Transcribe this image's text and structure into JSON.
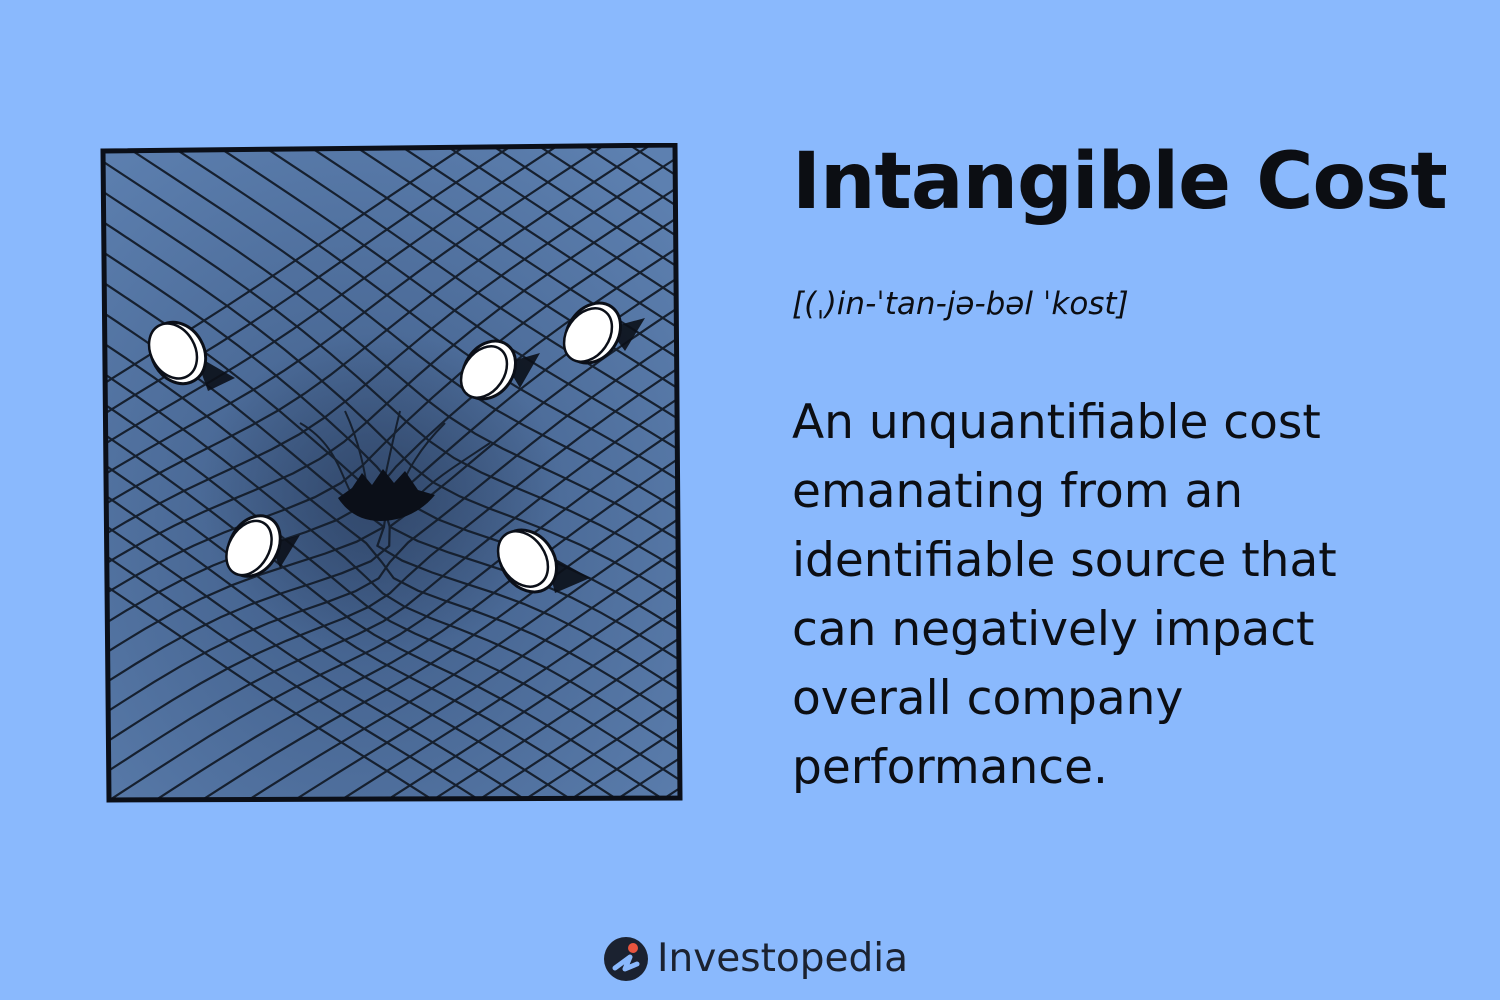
{
  "term": {
    "title": "Intangible Cost",
    "pronunciation": "[(ˌ)in-ˈtan-jə-bəl ˈkost]",
    "definition": "An unquantifiable cost emanating from an identifiable source that can negatively impact overall company performance."
  },
  "brand": {
    "name": "Investopedia",
    "logo_icon": "investopedia-logo-icon"
  },
  "illustration": {
    "icon": "coins-on-grid-illustration",
    "panel_color": "#4a6a97",
    "coin_color": "#ffffff"
  },
  "colors": {
    "background": "#8ab9fd",
    "text": "#0c0e13",
    "accent": "#e8553f"
  }
}
